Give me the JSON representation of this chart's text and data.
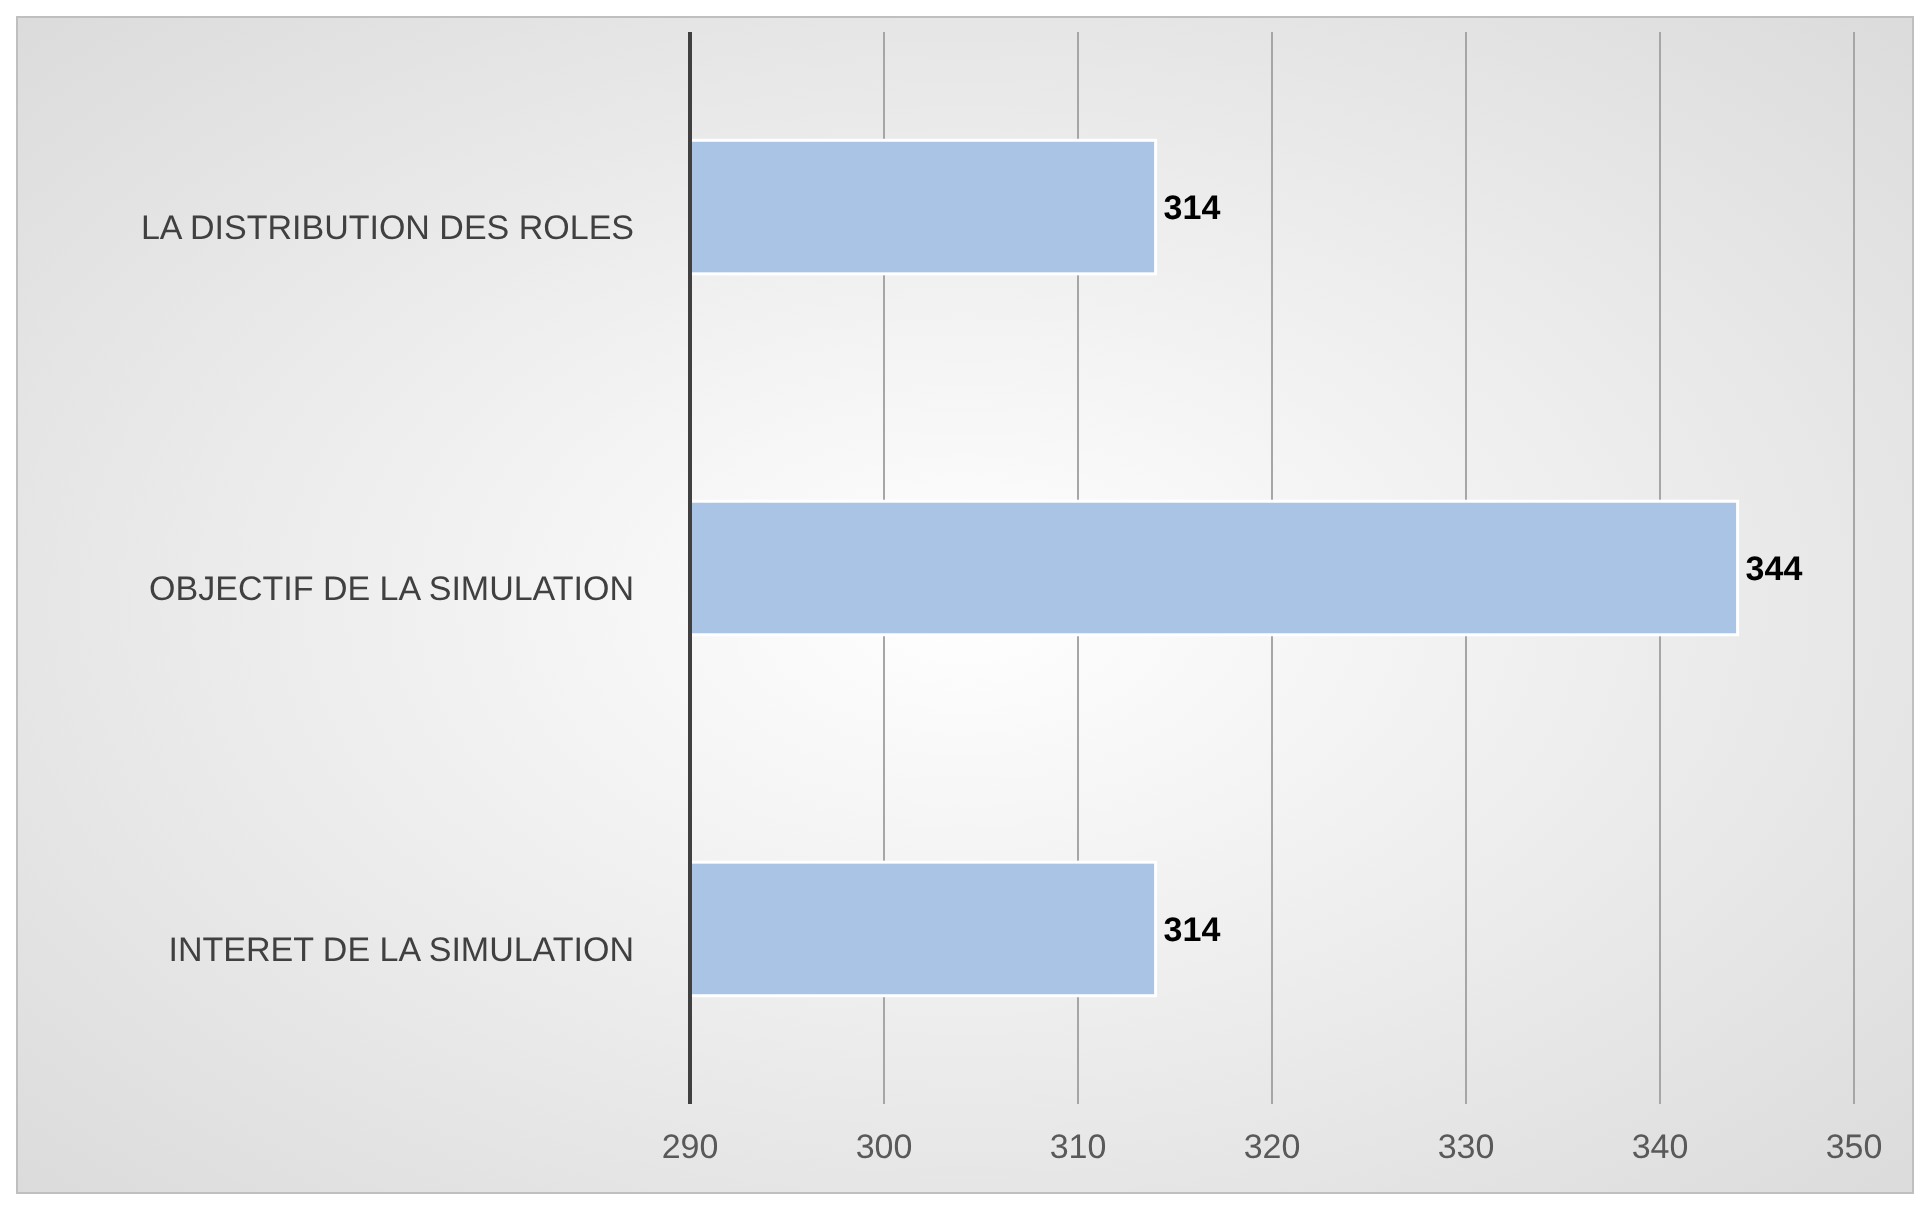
{
  "chart_data": {
    "type": "bar",
    "orientation": "horizontal",
    "categories": [
      "LA DISTRIBUTION DES ROLES",
      "OBJECTIF DE LA SIMULATION",
      "INTERET DE LA SIMULATION"
    ],
    "values": [
      314,
      344,
      314
    ],
    "color": "#a9c4e4",
    "xlim": [
      290,
      350
    ],
    "xticks": [
      290,
      300,
      310,
      320,
      330,
      340,
      350
    ],
    "grid": "x",
    "data_labels": true
  }
}
